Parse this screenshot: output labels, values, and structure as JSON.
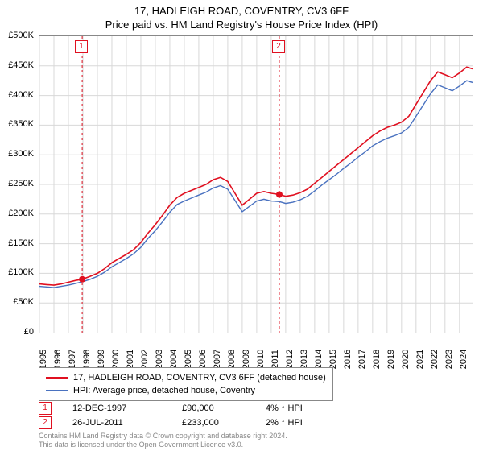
{
  "title": {
    "main": "17, HADLEIGH ROAD, COVENTRY, CV3 6FF",
    "sub": "Price paid vs. HM Land Registry's House Price Index (HPI)"
  },
  "chart": {
    "type": "line",
    "background_color": "#ffffff",
    "border_color": "#888888",
    "grid_color": "#d8d8d8",
    "ylim": [
      0,
      500000
    ],
    "ytick_step": 50000,
    "y_labels": [
      "£0",
      "£50K",
      "£100K",
      "£150K",
      "£200K",
      "£250K",
      "£300K",
      "£350K",
      "£400K",
      "£450K",
      "£500K"
    ],
    "xlim": [
      1995,
      2024.9
    ],
    "x_labels": [
      "1995",
      "1996",
      "1997",
      "1998",
      "1999",
      "2000",
      "2001",
      "2002",
      "2003",
      "2004",
      "2005",
      "2006",
      "2007",
      "2008",
      "2009",
      "2010",
      "2011",
      "2012",
      "2013",
      "2014",
      "2015",
      "2016",
      "2017",
      "2018",
      "2019",
      "2020",
      "2021",
      "2022",
      "2023",
      "2024"
    ],
    "label_fontsize": 11,
    "series": [
      {
        "name": "17, HADLEIGH ROAD, COVENTRY, CV3 6FF (detached house)",
        "color": "#e01020",
        "line_width": 1.6,
        "data": [
          [
            1995.0,
            82000
          ],
          [
            1995.5,
            81000
          ],
          [
            1996.0,
            80000
          ],
          [
            1996.5,
            82000
          ],
          [
            1997.0,
            85000
          ],
          [
            1997.5,
            88000
          ],
          [
            1997.95,
            90000
          ],
          [
            1998.5,
            95000
          ],
          [
            1999.0,
            100000
          ],
          [
            1999.5,
            108000
          ],
          [
            2000.0,
            118000
          ],
          [
            2000.5,
            125000
          ],
          [
            2001.0,
            132000
          ],
          [
            2001.5,
            140000
          ],
          [
            2002.0,
            152000
          ],
          [
            2002.5,
            168000
          ],
          [
            2003.0,
            182000
          ],
          [
            2003.5,
            198000
          ],
          [
            2004.0,
            215000
          ],
          [
            2004.5,
            228000
          ],
          [
            2005.0,
            235000
          ],
          [
            2005.5,
            240000
          ],
          [
            2006.0,
            245000
          ],
          [
            2006.5,
            250000
          ],
          [
            2007.0,
            258000
          ],
          [
            2007.5,
            262000
          ],
          [
            2008.0,
            255000
          ],
          [
            2008.5,
            235000
          ],
          [
            2009.0,
            215000
          ],
          [
            2009.5,
            225000
          ],
          [
            2010.0,
            235000
          ],
          [
            2010.5,
            238000
          ],
          [
            2011.0,
            235000
          ],
          [
            2011.56,
            233000
          ],
          [
            2012.0,
            230000
          ],
          [
            2012.5,
            232000
          ],
          [
            2013.0,
            236000
          ],
          [
            2013.5,
            242000
          ],
          [
            2014.0,
            252000
          ],
          [
            2014.5,
            262000
          ],
          [
            2015.0,
            272000
          ],
          [
            2015.5,
            282000
          ],
          [
            2016.0,
            292000
          ],
          [
            2016.5,
            302000
          ],
          [
            2017.0,
            312000
          ],
          [
            2017.5,
            322000
          ],
          [
            2018.0,
            332000
          ],
          [
            2018.5,
            340000
          ],
          [
            2019.0,
            346000
          ],
          [
            2019.5,
            350000
          ],
          [
            2020.0,
            355000
          ],
          [
            2020.5,
            365000
          ],
          [
            2021.0,
            385000
          ],
          [
            2021.5,
            405000
          ],
          [
            2022.0,
            425000
          ],
          [
            2022.5,
            440000
          ],
          [
            2023.0,
            435000
          ],
          [
            2023.5,
            430000
          ],
          [
            2024.0,
            438000
          ],
          [
            2024.5,
            448000
          ],
          [
            2024.9,
            445000
          ]
        ]
      },
      {
        "name": "HPI: Average price, detached house, Coventry",
        "color": "#4a72c0",
        "line_width": 1.4,
        "data": [
          [
            1995.0,
            78000
          ],
          [
            1995.5,
            77000
          ],
          [
            1996.0,
            76000
          ],
          [
            1996.5,
            78000
          ],
          [
            1997.0,
            80000
          ],
          [
            1997.5,
            83000
          ],
          [
            1998.0,
            86000
          ],
          [
            1998.5,
            90000
          ],
          [
            1999.0,
            95000
          ],
          [
            1999.5,
            102000
          ],
          [
            2000.0,
            111000
          ],
          [
            2000.5,
            118000
          ],
          [
            2001.0,
            125000
          ],
          [
            2001.5,
            133000
          ],
          [
            2002.0,
            144000
          ],
          [
            2002.5,
            159000
          ],
          [
            2003.0,
            172000
          ],
          [
            2003.5,
            187000
          ],
          [
            2004.0,
            203000
          ],
          [
            2004.5,
            216000
          ],
          [
            2005.0,
            222000
          ],
          [
            2005.5,
            227000
          ],
          [
            2006.0,
            232000
          ],
          [
            2006.5,
            237000
          ],
          [
            2007.0,
            244000
          ],
          [
            2007.5,
            248000
          ],
          [
            2008.0,
            242000
          ],
          [
            2008.5,
            223000
          ],
          [
            2009.0,
            204000
          ],
          [
            2009.5,
            213000
          ],
          [
            2010.0,
            222000
          ],
          [
            2010.5,
            225000
          ],
          [
            2011.0,
            222000
          ],
          [
            2011.56,
            221000
          ],
          [
            2012.0,
            218000
          ],
          [
            2012.5,
            220000
          ],
          [
            2013.0,
            224000
          ],
          [
            2013.5,
            230000
          ],
          [
            2014.0,
            239000
          ],
          [
            2014.5,
            249000
          ],
          [
            2015.0,
            258000
          ],
          [
            2015.5,
            267000
          ],
          [
            2016.0,
            277000
          ],
          [
            2016.5,
            286000
          ],
          [
            2017.0,
            296000
          ],
          [
            2017.5,
            305000
          ],
          [
            2018.0,
            315000
          ],
          [
            2018.5,
            322000
          ],
          [
            2019.0,
            328000
          ],
          [
            2019.5,
            332000
          ],
          [
            2020.0,
            337000
          ],
          [
            2020.5,
            346000
          ],
          [
            2021.0,
            365000
          ],
          [
            2021.5,
            384000
          ],
          [
            2022.0,
            403000
          ],
          [
            2022.5,
            418000
          ],
          [
            2023.0,
            413000
          ],
          [
            2023.5,
            408000
          ],
          [
            2024.0,
            416000
          ],
          [
            2024.5,
            425000
          ],
          [
            2024.9,
            422000
          ]
        ]
      }
    ],
    "markers": [
      {
        "num": "1",
        "x": 1997.95,
        "y": 90000,
        "date": "12-DEC-1997",
        "price": "£90,000",
        "pct": "4% ↑ HPI",
        "vline_color": "#e01020"
      },
      {
        "num": "2",
        "x": 2011.56,
        "y": 233000,
        "date": "26-JUL-2011",
        "price": "£233,000",
        "pct": "2% ↑ HPI",
        "vline_color": "#e01020"
      }
    ],
    "marker_point_color": "#e01020",
    "marker_point_radius": 4
  },
  "legend": {
    "border_color": "#888888",
    "items": [
      {
        "label": "17, HADLEIGH ROAD, COVENTRY, CV3 6FF (detached house)",
        "color": "#e01020"
      },
      {
        "label": "HPI: Average price, detached house, Coventry",
        "color": "#4a72c0"
      }
    ]
  },
  "footer": {
    "line1": "Contains HM Land Registry data © Crown copyright and database right 2024.",
    "line2": "This data is licensed under the Open Government Licence v3.0."
  }
}
